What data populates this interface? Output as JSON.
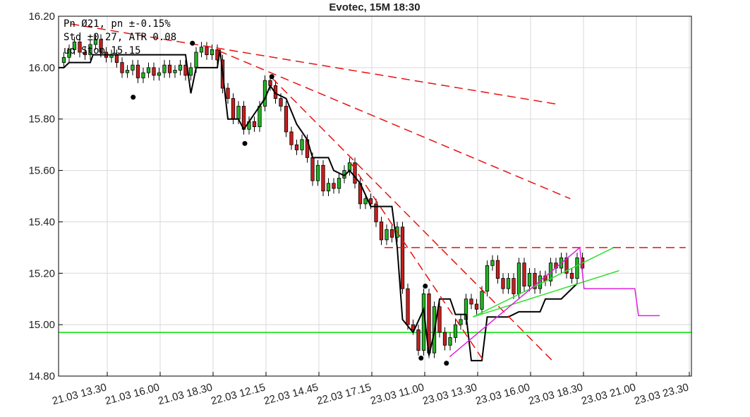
{
  "chart_data": {
    "type": "candlestick",
    "title": "Evotec, 15M 18:30",
    "info": [
      "Pn  Ø21, pn ±-0.15%",
      "Std ±0.27, ATR 0.08",
      "up Stop 15.15"
    ],
    "up_color": "#22b522",
    "down_color": "#c81e1e",
    "grid": true,
    "ylim": [
      14.8,
      16.2
    ],
    "yticks": [
      {
        "value": 14.8,
        "label": "14.80"
      },
      {
        "value": 15.0,
        "label": "15.00"
      },
      {
        "value": 15.2,
        "label": "15.20"
      },
      {
        "value": 15.4,
        "label": "15.40"
      },
      {
        "value": 15.6,
        "label": "15.60"
      },
      {
        "value": 15.8,
        "label": "15.80"
      },
      {
        "value": 16.0,
        "label": "16.00"
      },
      {
        "value": 16.2,
        "label": "16.20"
      }
    ],
    "xlim": [
      -1,
      118.6
    ],
    "xticks": [
      {
        "value": 8.2,
        "label": "21.03 13.30"
      },
      {
        "value": 18.2,
        "label": "21.03 16.00"
      },
      {
        "value": 28.2,
        "label": "21.03 18.30"
      },
      {
        "value": 38.2,
        "label": "22.03 12.15"
      },
      {
        "value": 48.2,
        "label": "22.03 14.45"
      },
      {
        "value": 58.2,
        "label": "22.03 17.15"
      },
      {
        "value": 68.2,
        "label": "23.03 11.00"
      },
      {
        "value": 78.2,
        "label": "23.03 13.30"
      },
      {
        "value": 88.2,
        "label": "23.03 16.00"
      },
      {
        "value": 98.2,
        "label": "23.03 18.30"
      },
      {
        "value": 108.2,
        "label": "23.03 21.00"
      },
      {
        "value": 118.2,
        "label": "23.03 23.30"
      }
    ],
    "open": [
      16.02,
      16.04,
      16.07,
      16.1,
      16.06,
      16.05,
      16.09,
      16.11,
      16.06,
      16.04,
      16.05,
      16.02,
      15.98,
      15.99,
      16.01,
      15.96,
      15.98,
      16.0,
      15.97,
      15.98,
      16.01,
      15.98,
      15.99,
      16.01,
      15.97,
      16.0,
      16.06,
      16.08,
      16.05,
      16.07,
      16.03,
      15.92,
      15.88,
      15.8,
      15.85,
      15.76,
      15.79,
      15.77,
      15.85,
      15.95,
      15.93,
      15.88,
      15.85,
      15.75,
      15.7,
      15.68,
      15.72,
      15.65,
      15.56,
      15.62,
      15.52,
      15.55,
      15.53,
      15.57,
      15.6,
      15.63,
      15.55,
      15.47,
      15.49,
      15.47,
      15.4,
      15.33,
      15.37,
      15.34,
      15.38,
      15.14,
      15.0,
      14.98,
      14.9,
      15.12,
      14.89,
      15.07,
      14.97,
      14.92,
      14.95,
      15.0,
      15.02,
      15.1,
      15.08,
      15.06,
      15.13,
      15.23,
      15.25,
      15.18,
      15.14,
      15.18,
      15.12,
      15.24,
      15.15,
      15.2,
      15.14,
      15.19,
      15.17,
      15.24,
      15.22,
      15.26,
      15.2,
      15.18,
      15.26
    ],
    "high": [
      16.06,
      16.09,
      16.12,
      16.12,
      16.08,
      16.11,
      16.13,
      16.13,
      16.08,
      16.07,
      16.07,
      16.04,
      16.01,
      16.03,
      16.03,
      16.0,
      16.02,
      16.02,
      16.0,
      16.03,
      16.03,
      16.01,
      16.03,
      16.03,
      16.02,
      16.08,
      16.1,
      16.1,
      16.09,
      16.09,
      16.05,
      15.94,
      15.9,
      15.87,
      15.87,
      15.81,
      15.81,
      15.87,
      15.97,
      15.97,
      15.95,
      15.9,
      15.87,
      15.77,
      15.72,
      15.74,
      15.74,
      15.67,
      15.64,
      15.64,
      15.57,
      15.57,
      15.59,
      15.62,
      15.65,
      15.65,
      15.57,
      15.51,
      15.51,
      15.49,
      15.42,
      15.39,
      15.39,
      15.4,
      15.4,
      15.16,
      15.02,
      15.0,
      15.14,
      15.14,
      15.09,
      15.09,
      14.99,
      14.97,
      15.02,
      15.04,
      15.12,
      15.12,
      15.1,
      15.15,
      15.25,
      15.27,
      15.27,
      15.2,
      15.2,
      15.2,
      15.26,
      15.26,
      15.22,
      15.22,
      15.21,
      15.21,
      15.26,
      15.26,
      15.28,
      15.28,
      15.22,
      15.28,
      15.28
    ],
    "low": [
      16.0,
      16.02,
      16.05,
      16.04,
      16.03,
      16.03,
      16.07,
      16.04,
      16.02,
      16.02,
      16.0,
      15.96,
      15.96,
      15.97,
      15.94,
      15.94,
      15.96,
      15.95,
      15.95,
      15.96,
      15.96,
      15.96,
      15.97,
      15.95,
      15.95,
      15.98,
      16.04,
      16.03,
      16.03,
      16.01,
      15.9,
      15.86,
      15.78,
      15.78,
      15.74,
      15.74,
      15.75,
      15.75,
      15.83,
      15.91,
      15.86,
      15.83,
      15.73,
      15.68,
      15.66,
      15.66,
      15.63,
      15.54,
      15.54,
      15.5,
      15.5,
      15.51,
      15.51,
      15.55,
      15.58,
      15.53,
      15.45,
      15.45,
      15.45,
      15.38,
      15.31,
      15.31,
      15.32,
      15.32,
      15.12,
      14.98,
      14.96,
      14.88,
      14.88,
      14.87,
      14.87,
      14.95,
      14.9,
      14.9,
      14.93,
      14.98,
      15.0,
      15.06,
      15.04,
      15.04,
      15.11,
      15.21,
      15.16,
      15.12,
      15.12,
      15.1,
      15.1,
      15.13,
      15.13,
      15.12,
      15.12,
      15.15,
      15.15,
      15.2,
      15.2,
      15.18,
      15.16,
      15.16,
      15.2
    ],
    "close": [
      16.04,
      16.07,
      16.1,
      16.06,
      16.05,
      16.09,
      16.11,
      16.06,
      16.04,
      16.05,
      16.02,
      15.98,
      15.99,
      16.01,
      15.96,
      15.98,
      16.0,
      15.97,
      15.98,
      16.01,
      15.98,
      15.99,
      16.01,
      15.97,
      16.0,
      16.06,
      16.08,
      16.05,
      16.07,
      16.03,
      15.92,
      15.88,
      15.8,
      15.85,
      15.76,
      15.79,
      15.77,
      15.85,
      15.95,
      15.93,
      15.88,
      15.85,
      15.75,
      15.7,
      15.68,
      15.72,
      15.65,
      15.56,
      15.62,
      15.52,
      15.55,
      15.53,
      15.57,
      15.6,
      15.63,
      15.55,
      15.47,
      15.49,
      15.47,
      15.4,
      15.33,
      15.37,
      15.34,
      15.38,
      15.14,
      15.0,
      14.98,
      14.9,
      15.12,
      14.89,
      15.07,
      14.97,
      14.92,
      14.95,
      15.0,
      15.02,
      15.1,
      15.08,
      15.06,
      15.13,
      15.23,
      15.25,
      15.18,
      15.14,
      15.18,
      15.12,
      15.24,
      15.15,
      15.2,
      15.14,
      15.19,
      15.17,
      15.24,
      15.22,
      15.26,
      15.2,
      15.18,
      15.26,
      15.22
    ],
    "hlines": [
      {
        "value": 14.97,
        "color": "#00e000"
      }
    ],
    "lines": [
      {
        "color": "#000000",
        "dash": false,
        "width": 2,
        "x": [
          -1,
          0,
          1,
          5,
          5.5,
          23,
          24,
          25,
          29,
          29.5,
          31,
          33,
          34,
          36,
          38,
          39,
          40,
          42,
          44,
          46,
          47,
          50,
          51,
          53,
          54,
          56,
          58,
          62,
          63,
          64,
          66,
          68,
          69,
          70,
          71,
          73,
          74,
          76,
          77,
          79,
          80,
          84,
          86,
          90,
          91,
          94,
          96,
          97
        ],
        "y": [
          16.0,
          16.0,
          16.02,
          16.02,
          16.05,
          16.05,
          15.9,
          16.0,
          16.0,
          16.07,
          15.8,
          15.8,
          15.76,
          15.82,
          15.88,
          15.93,
          15.9,
          15.88,
          15.78,
          15.72,
          15.65,
          15.65,
          15.6,
          15.58,
          15.6,
          15.55,
          15.46,
          15.46,
          15.3,
          15.02,
          14.97,
          15.06,
          14.88,
          14.97,
          15.1,
          15.1,
          15.04,
          15.04,
          14.86,
          14.86,
          15.03,
          15.03,
          15.05,
          15.05,
          15.1,
          15.1,
          15.14,
          15.16
        ]
      },
      {
        "color": "#e81010",
        "dash": true,
        "width": 1.5,
        "x": [
          1.3,
          93.5
        ],
        "y": [
          16.17,
          15.857
        ]
      },
      {
        "color": "#e81010",
        "dash": true,
        "width": 1.5,
        "x": [
          29.3,
          95.7
        ],
        "y": [
          16.065,
          15.49
        ]
      },
      {
        "color": "#e81010",
        "dash": true,
        "width": 1.5,
        "x": [
          39.3,
          92.3
        ],
        "y": [
          15.96,
          14.86
        ]
      },
      {
        "color": "#e81010",
        "dash": true,
        "width": 1.5,
        "x": [
          54.2,
          79.3
        ],
        "y": [
          15.63,
          14.86
        ]
      },
      {
        "color": "#e81010",
        "dash": true,
        "width": 1.5,
        "x": [
          60.6,
          117.5
        ],
        "y": [
          15.3,
          15.3
        ]
      },
      {
        "color": "#30e030",
        "dash": false,
        "width": 1.5,
        "x": [
          77.3,
          103.9
        ],
        "y": [
          15.03,
          15.3
        ]
      },
      {
        "color": "#30e030",
        "dash": false,
        "width": 1.5,
        "x": [
          77.3,
          104.9
        ],
        "y": [
          15.03,
          15.21
        ]
      },
      {
        "color": "#e020e0",
        "dash": false,
        "width": 1.5,
        "x": [
          72.9,
          97.5,
          98.3,
          107.9,
          108.6,
          112.6
        ],
        "y": [
          14.875,
          15.3,
          15.14,
          15.14,
          15.035,
          15.035
        ]
      }
    ],
    "points": {
      "color": "#000000",
      "x": [
        24.3,
        13.1,
        34.2,
        39.3,
        68.3,
        67.5,
        72.3
      ],
      "y": [
        16.095,
        15.885,
        15.705,
        15.965,
        15.15,
        14.87,
        14.85
      ]
    }
  }
}
